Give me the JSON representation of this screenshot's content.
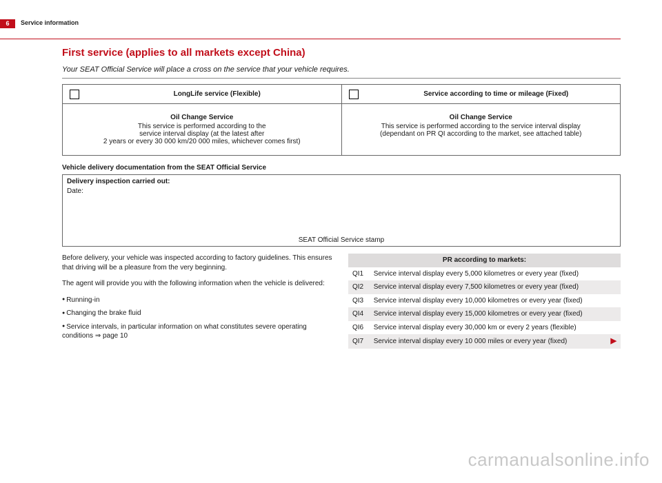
{
  "header": {
    "page_number": "6",
    "section": "Service information",
    "rule_color": "#c10e1a"
  },
  "title": "First service (applies to all markets except China)",
  "subtitle": "Your SEAT Official Service will place a cross on the service that your vehicle requires.",
  "service_table": {
    "left": {
      "header": "LongLife service (Flexible)",
      "title": "Oil Change Service",
      "line1": "This service is performed according to the",
      "line2": "service interval display (at the latest after",
      "line3": "2 years or every 30 000 km/20 000 miles, whichever comes first)"
    },
    "right": {
      "header": "Service according to time or mileage (Fixed)",
      "title": "Oil Change Service",
      "line1": "This service is performed according to the service interval display",
      "line2": "(dependant on PR QI according to the market, see attached table)"
    }
  },
  "delivery": {
    "heading": "Vehicle delivery documentation from the SEAT Official Service",
    "label": "Delivery inspection carried out:",
    "date_label": "Date:",
    "stamp": "SEAT Official Service stamp"
  },
  "left_col": {
    "p1": "Before delivery, your vehicle was inspected according to factory guidelines. This ensures that driving will be a pleasure from the very beginning.",
    "p2": "The agent will provide you with the following information when the vehicle is delivered:",
    "bullets": {
      "b1": "Running-in",
      "b2": "Changing the brake fluid",
      "b3_a": "Service intervals, in particular information on what constitutes severe operating conditions ",
      "b3_b": "⇒ page 10"
    }
  },
  "pr_table": {
    "header": "PR according to markets:",
    "rows": [
      {
        "code": "QI1",
        "text": "Service interval display every 5,000 kilometres or every year (fixed)"
      },
      {
        "code": "QI2",
        "text": "Service interval display every 7,500 kilometres or every year (fixed)"
      },
      {
        "code": "QI3",
        "text": "Service interval display every 10,000 kilometres or every year (fixed)"
      },
      {
        "code": "QI4",
        "text": "Service interval display every 15,000 kilometres or every year (fixed)"
      },
      {
        "code": "QI6",
        "text": "Service interval display every 30,000 km or every 2 years (flexible)"
      },
      {
        "code": "QI7",
        "text": "Service interval display every 10 000 miles or every year (fixed)"
      }
    ],
    "arrow": "▶"
  },
  "watermark": "carmanualsonline.info",
  "colors": {
    "accent": "#c10e1a",
    "border": "#666666",
    "shade1": "#eceaea",
    "shade2": "#dedcdc",
    "watermark": "#c8c8c8"
  }
}
